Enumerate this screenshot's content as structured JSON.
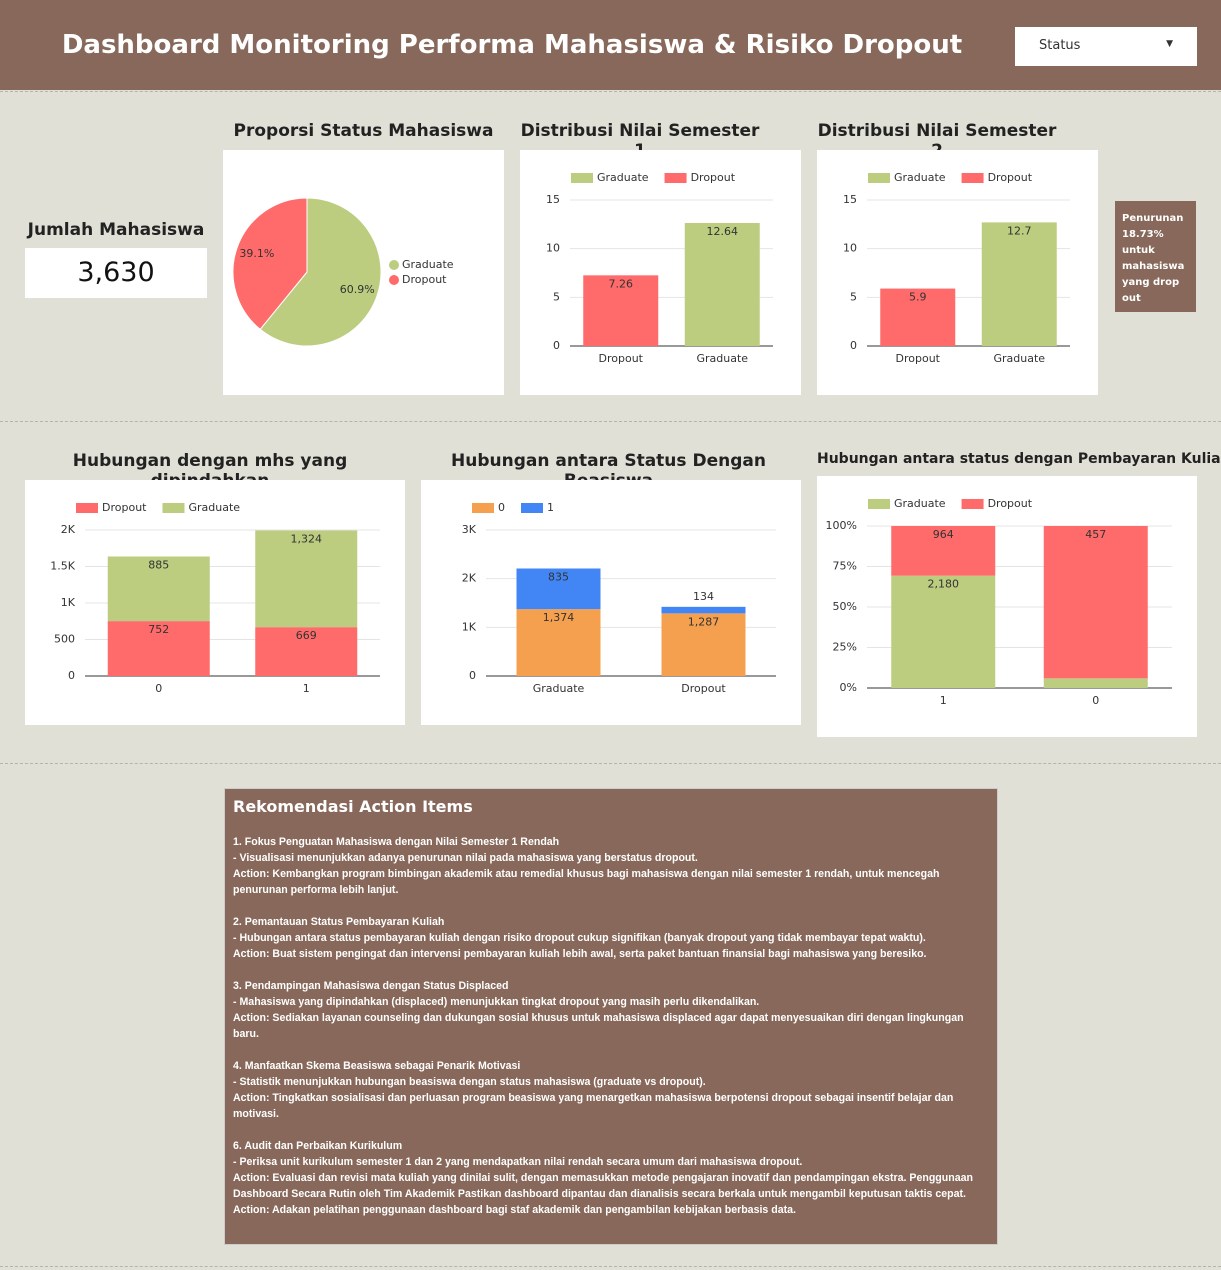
{
  "header": {
    "title": "Dashboard Monitoring Performa Mahasiswa & Risiko Dropout",
    "filter": "Status"
  },
  "scorecard": {
    "label": "Jumlah Mahasiswa",
    "value": "3,630"
  },
  "note": "Penurunan 18.73% untuk mahasiswa yang drop out",
  "chart_data": [
    {
      "type": "pie",
      "title": "Proporsi Status Mahasiswa",
      "categories": [
        "Graduate",
        "Dropout"
      ],
      "values": [
        60.9,
        39.1
      ],
      "value_labels": [
        "60.9%",
        "39.1%"
      ],
      "colors": [
        "#bccd80",
        "#ff6b6b"
      ],
      "legend": "right"
    },
    {
      "type": "bar",
      "title": "Distribusi Nilai Semester 1",
      "categories": [
        "Dropout",
        "Graduate"
      ],
      "series": [
        {
          "name": "Graduate",
          "color": "#bccd80",
          "values": [
            null,
            12.64
          ]
        },
        {
          "name": "Dropout",
          "color": "#ff6b6b",
          "values": [
            7.26,
            null
          ]
        }
      ],
      "ylim": [
        0,
        15
      ],
      "yticks": [
        0,
        5,
        10,
        15
      ],
      "grid": true,
      "legend": "top"
    },
    {
      "type": "bar",
      "title": "Distribusi Nilai Semester 2",
      "categories": [
        "Dropout",
        "Graduate"
      ],
      "series": [
        {
          "name": "Graduate",
          "color": "#bccd80",
          "values": [
            null,
            12.7
          ]
        },
        {
          "name": "Dropout",
          "color": "#ff6b6b",
          "values": [
            5.9,
            null
          ]
        }
      ],
      "ylim": [
        0,
        15
      ],
      "yticks": [
        0,
        5,
        10,
        15
      ],
      "grid": true,
      "legend": "top"
    },
    {
      "type": "bar",
      "stack": "normal",
      "title": "Hubungan dengan mhs yang dipindahkan",
      "categories": [
        "0",
        "1"
      ],
      "series": [
        {
          "name": "Dropout",
          "color": "#ff6b6b",
          "values": [
            752,
            669
          ]
        },
        {
          "name": "Graduate",
          "color": "#bccd80",
          "values": [
            885,
            1324
          ],
          "value_labels": [
            "885",
            "1,324"
          ]
        }
      ],
      "ylim": [
        0,
        2000
      ],
      "yticks": [
        0,
        500,
        {
          "value": 1000,
          "label": "1K"
        },
        {
          "value": 1500,
          "label": "1.5K"
        },
        {
          "value": 2000,
          "label": "2K"
        }
      ],
      "grid": true,
      "legend": "top"
    },
    {
      "type": "bar",
      "stack": "normal",
      "title": "Hubungan antara Status Dengan Beasiswa",
      "categories": [
        "Graduate",
        "Dropout"
      ],
      "series": [
        {
          "name": "0",
          "color": "#f4a04f",
          "values": [
            1374,
            1287
          ],
          "value_labels": [
            "1,374",
            "1,287"
          ]
        },
        {
          "name": "1",
          "color": "#4285f4",
          "values": [
            835,
            134
          ]
        }
      ],
      "ylim": [
        0,
        3000
      ],
      "yticks": [
        0,
        {
          "value": 1000,
          "label": "1K"
        },
        {
          "value": 2000,
          "label": "2K"
        },
        {
          "value": 3000,
          "label": "3K"
        }
      ],
      "grid": true,
      "legend": "top"
    },
    {
      "type": "bar",
      "stack": "percent",
      "title": "Hubungan antara status dengan Pembayaran Kuliah",
      "categories": [
        "1",
        "0"
      ],
      "series": [
        {
          "name": "Graduate",
          "color": "#bccd80",
          "values": [
            2180,
            29
          ],
          "value_labels": [
            "2,180",
            "29"
          ]
        },
        {
          "name": "Dropout",
          "color": "#ff6b6b",
          "values": [
            964,
            457
          ]
        }
      ],
      "ylim": [
        0,
        100
      ],
      "yticks": [
        {
          "value": 0,
          "label": "0%"
        },
        {
          "value": 25,
          "label": "25%"
        },
        {
          "value": 50,
          "label": "50%"
        },
        {
          "value": 75,
          "label": "75%"
        },
        {
          "value": 100,
          "label": "100%"
        }
      ],
      "grid": true,
      "legend": "top"
    }
  ],
  "recommendations": {
    "title": "Rekomendasi Action Items",
    "paragraphs": [
      [
        "1. Fokus Penguatan Mahasiswa dengan Nilai Semester 1 Rendah",
        "-  Visualisasi menunjukkan adanya penurunan nilai pada mahasiswa yang berstatus dropout.",
        "Action: Kembangkan program bimbingan akademik atau remedial khusus bagi mahasiswa dengan nilai semester 1 rendah, untuk mencegah penurunan performa lebih lanjut."
      ],
      [
        "2. Pemantauan Status Pembayaran Kuliah",
        " - Hubungan antara status pembayaran kuliah dengan risiko dropout cukup signifikan (banyak dropout yang tidak membayar tepat waktu).",
        "Action: Buat sistem pengingat dan intervensi pembayaran kuliah lebih awal, serta paket bantuan finansial bagi mahasiswa yang beresiko."
      ],
      [
        "3. Pendampingan Mahasiswa dengan Status Displaced",
        "- Mahasiswa yang dipindahkan (displaced) menunjukkan tingkat dropout yang masih perlu dikendalikan.",
        "Action: Sediakan layanan counseling dan dukungan sosial khusus untuk mahasiswa displaced agar dapat menyesuaikan diri dengan lingkungan baru."
      ],
      [
        "4. Manfaatkan Skema Beasiswa sebagai Penarik Motivasi",
        "- Statistik menunjukkan hubungan beasiswa dengan status mahasiswa (graduate vs dropout).",
        "Action: Tingkatkan sosialisasi dan perluasan program beasiswa yang menargetkan mahasiswa berpotensi dropout sebagai insentif belajar dan motivasi."
      ],
      [
        "6. Audit dan Perbaikan Kurikulum",
        "- Periksa unit kurikulum semester 1 dan 2 yang mendapatkan nilai rendah secara umum dari mahasiswa dropout.",
        "Action: Evaluasi dan revisi mata kuliah yang dinilai sulit, dengan memasukkan metode pengajaran inovatif dan pendampingan ekstra. Penggunaan Dashboard Secara Rutin oleh Tim Akademik Pastikan dashboard dipantau dan dianalisis secara berkala untuk mengambil keputusan taktis cepat. Action: Adakan pelatihan penggunaan dashboard bagi staf akademik dan pengambilan kebijakan berbasis data."
      ]
    ]
  }
}
